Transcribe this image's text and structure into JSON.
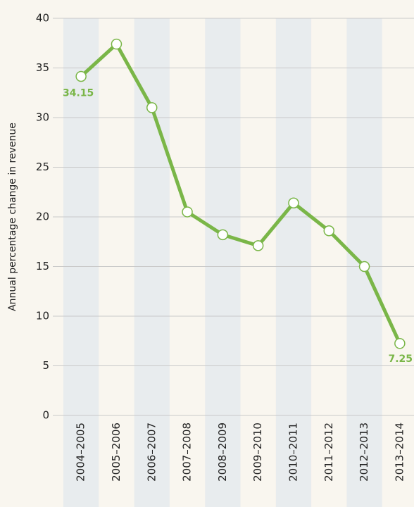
{
  "chart_data": {
    "type": "line",
    "y_label": "Annual percentage change in revenue",
    "categories": [
      "2004–2005",
      "2005–2006",
      "2006–2007",
      "2007–2008",
      "2008–2009",
      "2009–2010",
      "2010–2011",
      "2011–2012",
      "2012–2013",
      "2013–2014"
    ],
    "values": [
      34.15,
      37.4,
      31.0,
      20.5,
      18.2,
      17.1,
      21.4,
      18.6,
      15.0,
      7.25
    ],
    "color": "#7ab648",
    "ylim": [
      0,
      40
    ],
    "yticks": [
      0,
      5,
      10,
      15,
      20,
      25,
      30,
      35,
      40
    ],
    "grid": true
  }
}
